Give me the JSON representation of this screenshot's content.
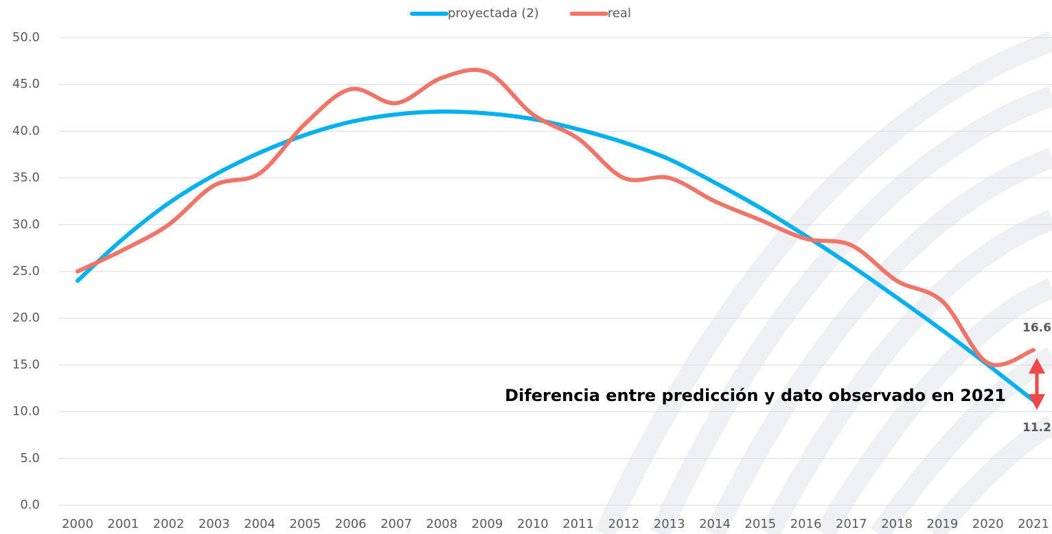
{
  "chart_data": {
    "type": "line",
    "annotation": "Diferencia entre predicción y dato observado en 2021",
    "categories": [
      "2000",
      "2001",
      "2002",
      "2003",
      "2004",
      "2005",
      "2006",
      "2007",
      "2008",
      "2009",
      "2010",
      "2011",
      "2012",
      "2013",
      "2014",
      "2015",
      "2016",
      "2017",
      "2018",
      "2019",
      "2020",
      "2021"
    ],
    "series": [
      {
        "name": "proyectada (2)",
        "color": "#00b0f0",
        "values": [
          24.0,
          28.5,
          32.3,
          35.3,
          37.7,
          39.6,
          41.0,
          41.8,
          42.1,
          41.9,
          41.3,
          40.2,
          38.8,
          37.0,
          34.5,
          31.8,
          28.8,
          25.6,
          22.2,
          18.7,
          15.0,
          11.2
        ],
        "value_labels": [
          null,
          null,
          null,
          null,
          null,
          null,
          null,
          null,
          null,
          null,
          null,
          null,
          null,
          null,
          null,
          null,
          null,
          null,
          null,
          null,
          null,
          "11.2"
        ]
      },
      {
        "name": "real",
        "color": "#f07468",
        "values": [
          25.0,
          27.3,
          30.0,
          34.2,
          35.5,
          40.8,
          44.5,
          43.0,
          45.7,
          46.3,
          41.8,
          39.2,
          35.0,
          35.0,
          32.5,
          30.5,
          28.5,
          27.8,
          24.0,
          21.8,
          15.2,
          16.6
        ],
        "value_labels": [
          null,
          null,
          null,
          null,
          null,
          null,
          null,
          null,
          null,
          null,
          null,
          null,
          null,
          null,
          null,
          null,
          null,
          null,
          null,
          null,
          null,
          "16.6"
        ]
      }
    ],
    "ylim": [
      0,
      50
    ],
    "yticks": [
      {
        "value": 0,
        "label": "0.0"
      },
      {
        "value": 5,
        "label": "5.0"
      },
      {
        "value": 10,
        "label": "10.0"
      },
      {
        "value": 15,
        "label": "15.0"
      },
      {
        "value": 20,
        "label": "20.0"
      },
      {
        "value": 25,
        "label": "25.0"
      },
      {
        "value": 30,
        "label": "30.0"
      },
      {
        "value": 35,
        "label": "35.0"
      },
      {
        "value": 40,
        "label": "40.0"
      },
      {
        "value": 45,
        "label": "45.0"
      },
      {
        "value": 50,
        "label": "50.0"
      }
    ],
    "grid": true,
    "legend": "top"
  }
}
